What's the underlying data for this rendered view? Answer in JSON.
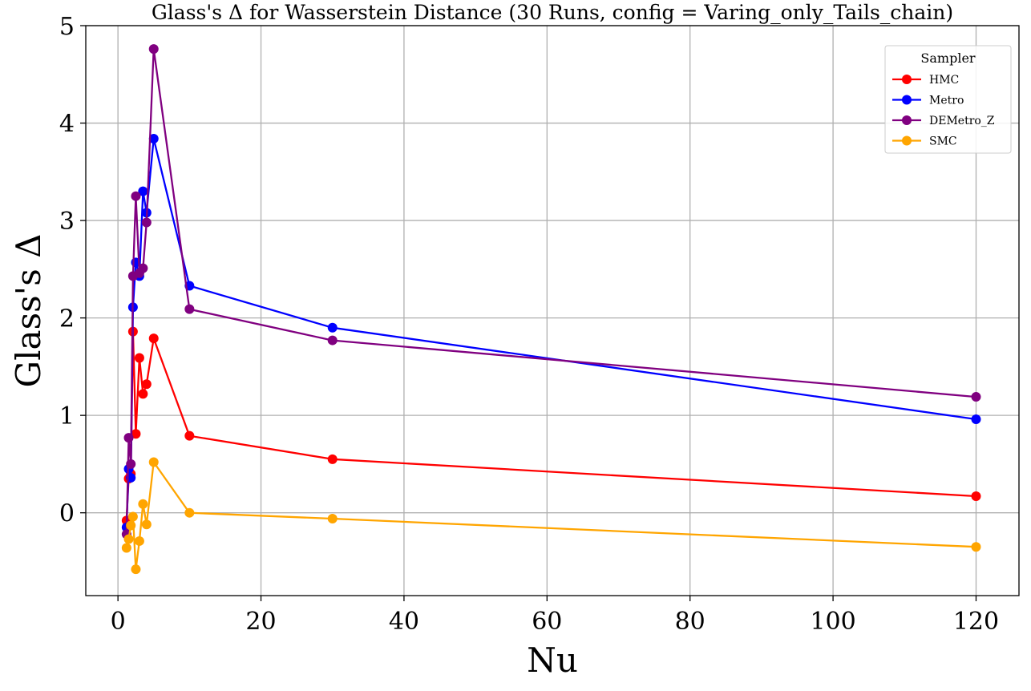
{
  "chart_data": {
    "type": "line",
    "title": "Glass's Δ for Wasserstein Distance (30 Runs, config = Varing_only_Tails_chain)",
    "xlabel": "Nu",
    "ylabel": "Glass's Δ",
    "xlim": [
      -4.5,
      126
    ],
    "ylim": [
      -0.85,
      5.0
    ],
    "xticks": [
      0,
      20,
      40,
      60,
      80,
      100,
      120
    ],
    "yticks": [
      0,
      1,
      2,
      3,
      4,
      5
    ],
    "grid": true,
    "legend": {
      "title": "Sampler",
      "placement": "top-right"
    },
    "x": [
      1.2,
      1.5,
      1.8,
      2.1,
      2.5,
      3.0,
      3.5,
      4.0,
      5.0,
      10,
      30,
      120
    ],
    "series": [
      {
        "name": "HMC",
        "color": "#ff0000",
        "values": [
          -0.08,
          0.35,
          0.4,
          1.86,
          0.81,
          1.59,
          1.22,
          1.32,
          1.79,
          0.79,
          0.55,
          0.17
        ]
      },
      {
        "name": "Metro",
        "color": "#0000ff",
        "values": [
          -0.15,
          0.45,
          0.36,
          2.11,
          2.57,
          2.43,
          3.3,
          3.08,
          3.84,
          2.33,
          1.9,
          0.96
        ]
      },
      {
        "name": "DEMetro_Z",
        "color": "#800080",
        "values": [
          -0.22,
          0.77,
          0.5,
          2.43,
          3.25,
          2.46,
          2.51,
          2.98,
          4.76,
          2.09,
          1.77,
          1.19
        ]
      },
      {
        "name": "SMC",
        "color": "#ffa500",
        "values": [
          -0.36,
          -0.27,
          -0.13,
          -0.04,
          -0.58,
          -0.29,
          0.09,
          -0.12,
          0.52,
          0.0,
          -0.06,
          -0.35
        ]
      }
    ]
  }
}
